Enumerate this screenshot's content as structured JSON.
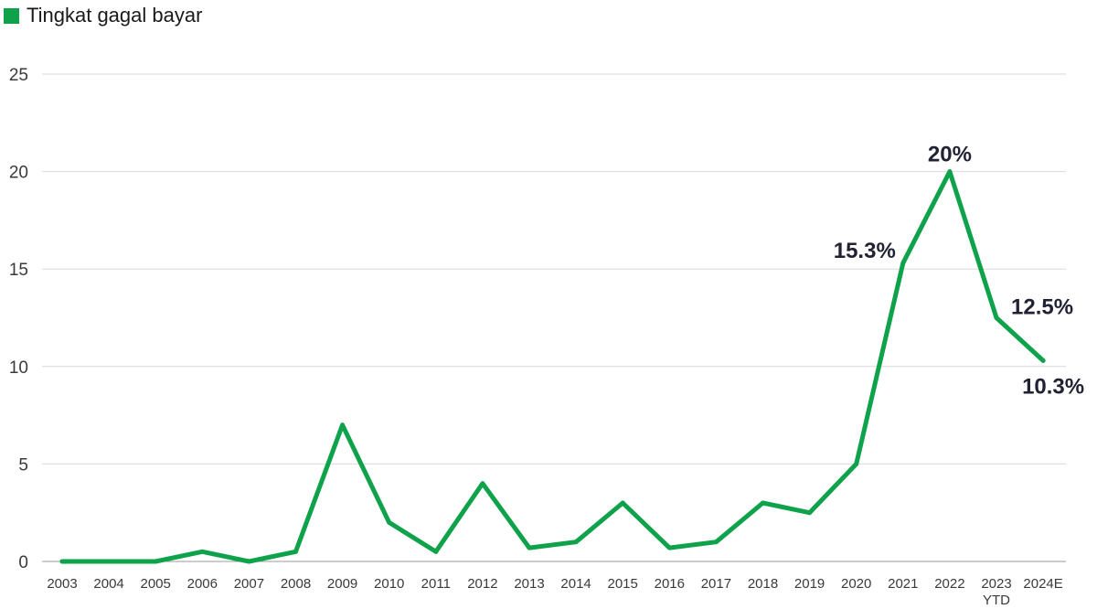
{
  "legend": {
    "label": "Tingkat gagal bayar"
  },
  "colors": {
    "series": "#0ea24a",
    "grid": "#d9d9d9",
    "axis": "#9a9a9a"
  },
  "chart_data": {
    "type": "line",
    "title": "",
    "xlabel": "",
    "ylabel": "",
    "categories": [
      "2003",
      "2004",
      "2005",
      "2006",
      "2007",
      "2008",
      "2009",
      "2010",
      "2011",
      "2012",
      "2013",
      "2014",
      "2015",
      "2016",
      "2017",
      "2018",
      "2019",
      "2020",
      "2021",
      "2022",
      "2023",
      "2024E"
    ],
    "category_sublabels": {
      "2023": "YTD"
    },
    "series": [
      {
        "name": "Tingkat gagal bayar",
        "values": [
          0,
          0,
          0,
          0.5,
          0,
          0.5,
          7,
          2,
          0.5,
          4,
          0.7,
          1,
          3,
          0.7,
          1,
          3,
          2.5,
          5,
          15.3,
          20,
          12.5,
          10.3
        ]
      }
    ],
    "ylim": [
      0,
      25
    ],
    "yticks": [
      0,
      5,
      10,
      15,
      20,
      25
    ],
    "grid": "horizontal",
    "legend_position": "top-left",
    "annotations": [
      {
        "category": "2021",
        "text": "15.3%"
      },
      {
        "category": "2022",
        "text": "20%"
      },
      {
        "category": "2023",
        "text": "12.5%"
      },
      {
        "category": "2024E",
        "text": "10.3%"
      }
    ]
  }
}
